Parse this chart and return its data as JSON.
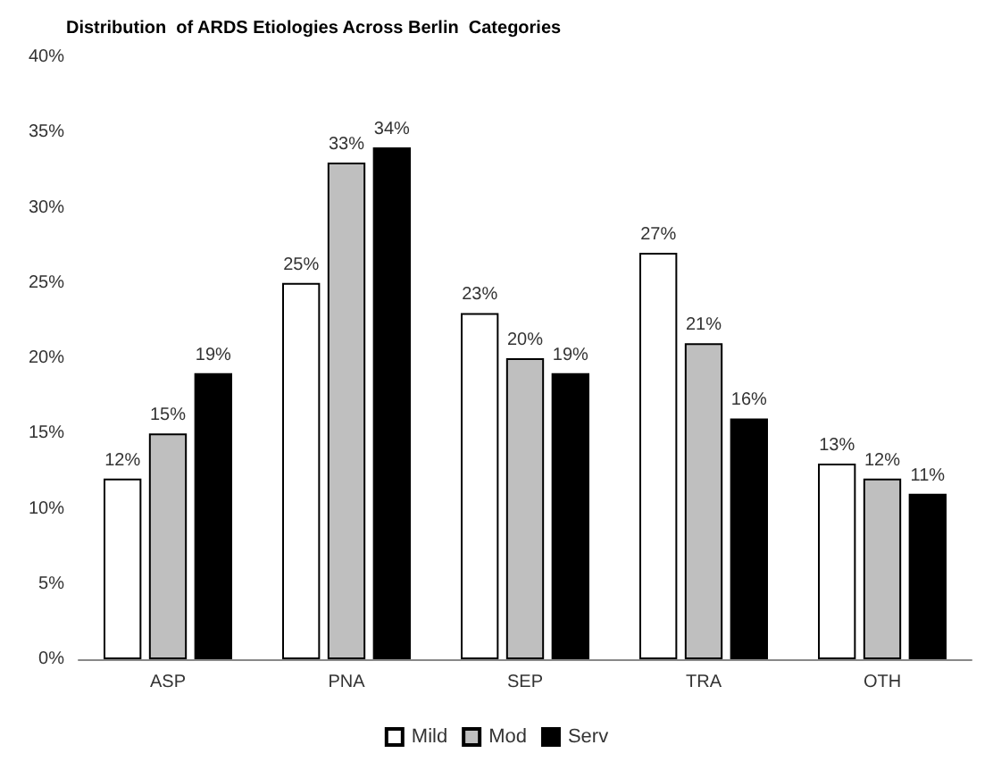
{
  "chart_data": {
    "type": "bar",
    "title": "Distribution  of ARDS Etiologies Across Berlin  Categories",
    "categories": [
      "ASP",
      "PNA",
      "SEP",
      "TRA",
      "OTH"
    ],
    "series": [
      {
        "name": "Mild",
        "color": "#ffffff",
        "values": [
          12,
          25,
          23,
          27,
          13
        ],
        "value_labels": [
          "12%",
          "25%",
          "23%",
          "27%",
          "13%"
        ]
      },
      {
        "name": "Mod",
        "color": "#bfbfbf",
        "values": [
          15,
          33,
          20,
          21,
          12
        ],
        "value_labels": [
          "15%",
          "33%",
          "20%",
          "21%",
          "12%"
        ]
      },
      {
        "name": "Serv",
        "color": "#000000",
        "values": [
          19,
          34,
          19,
          16,
          11
        ],
        "value_labels": [
          "19%",
          "34%",
          "19%",
          "16%",
          "11%"
        ]
      }
    ],
    "ylim": [
      0,
      40
    ],
    "yticks": [
      {
        "value": 0,
        "label": "0%"
      },
      {
        "value": 5,
        "label": "5%"
      },
      {
        "value": 10,
        "label": "10%"
      },
      {
        "value": 15,
        "label": "15%"
      },
      {
        "value": 20,
        "label": "20%"
      },
      {
        "value": 25,
        "label": "25%"
      },
      {
        "value": 30,
        "label": "30%"
      },
      {
        "value": 35,
        "label": "35%"
      },
      {
        "value": 40,
        "label": "40%"
      }
    ],
    "grid": false,
    "legend": "bottom"
  }
}
